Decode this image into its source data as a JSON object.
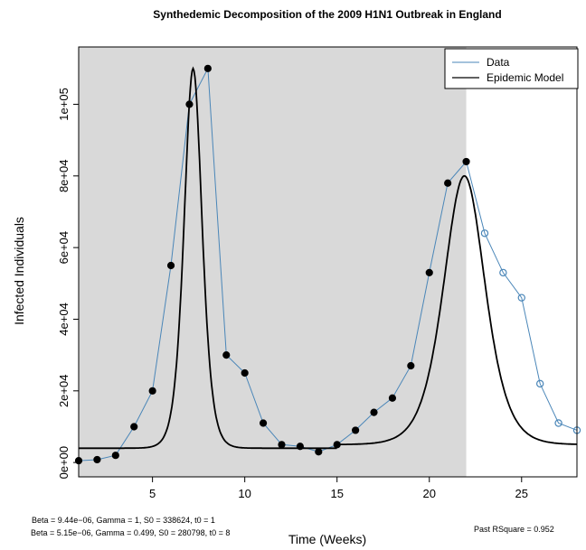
{
  "chart_data": {
    "type": "line",
    "title": "Synthedemic Decomposition of the 2009 H1N1 Outbreak in England",
    "xlabel": "Time (Weeks)",
    "ylabel": "Infected Individuals",
    "xlim": [
      1,
      28
    ],
    "ylim": [
      -4000,
      116000
    ],
    "x_ticks": [
      5,
      10,
      15,
      20,
      25
    ],
    "x_tick_labels": [
      "5",
      "10",
      "15",
      "20",
      "25"
    ],
    "y_ticks": [
      0,
      20000,
      40000,
      60000,
      80000,
      100000
    ],
    "y_tick_labels": [
      "0e+00",
      "2e+04",
      "4e+04",
      "6e+04",
      "8e+04",
      "1e+05"
    ],
    "shaded_x_range": [
      1,
      22
    ],
    "legend": {
      "placement": "top-right",
      "entries": [
        "Data",
        "Epidemic Model"
      ]
    },
    "series": [
      {
        "name": "Data",
        "color": "#4a86b8",
        "x": [
          1,
          2,
          3,
          4,
          5,
          6,
          7,
          8,
          9,
          10,
          11,
          12,
          13,
          14,
          15,
          16,
          17,
          18,
          19,
          20,
          21,
          22,
          23,
          24,
          25,
          26,
          27,
          28
        ],
        "values": [
          500,
          800,
          2000,
          10000,
          20000,
          55000,
          100000,
          110000,
          30000,
          25000,
          11000,
          5000,
          4500,
          3000,
          5000,
          9000,
          14000,
          18000,
          27000,
          53000,
          78000,
          84000,
          64000,
          53000,
          46000,
          22000,
          11000,
          9000
        ],
        "past_through_x": 22
      },
      {
        "name": "Epidemic Model",
        "color": "#000000",
        "components": [
          {
            "beta": "9.44e-06",
            "gamma": "1",
            "S0": "338624",
            "t0": "1",
            "baseline": 4000,
            "peak": 110000,
            "peak_x": 7.2,
            "width": 0.65
          },
          {
            "beta": "5.15e-06",
            "gamma": "0.499",
            "S0": "280798",
            "t0": "8",
            "baseline": 5000,
            "peak": 80000,
            "peak_x": 21.9,
            "width": 1.5
          }
        ]
      }
    ],
    "annotations": {
      "params_1": "Beta =  9.44e−06, Gamma =  1, S0 =  338624, t0 =  1",
      "params_2": "Beta =  5.15e−06, Gamma =  0.499, S0 =  280798, t0 =  8",
      "rsquare": "Past RSquare =  0.952"
    }
  }
}
